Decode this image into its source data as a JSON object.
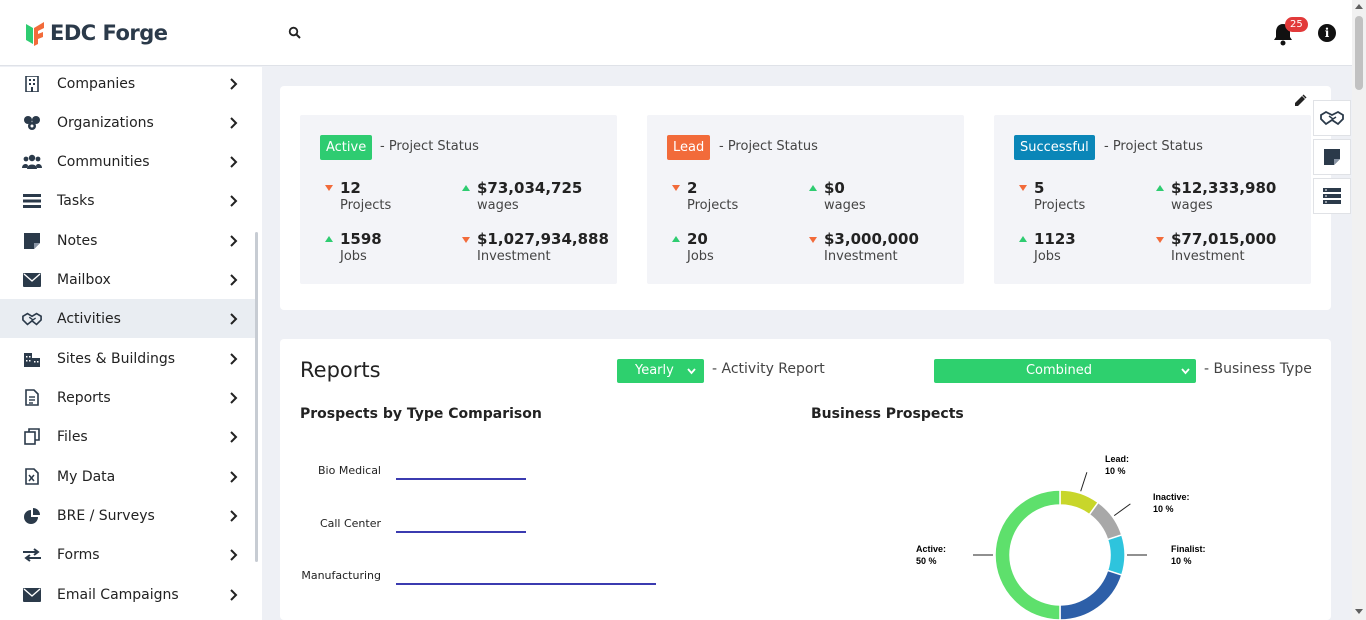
{
  "header": {
    "logo_text": "EDC Forge",
    "notification_count": "25"
  },
  "sidebar": {
    "items": [
      {
        "label": "Companies",
        "icon": "building-icon"
      },
      {
        "label": "Organizations",
        "icon": "organizations-icon"
      },
      {
        "label": "Communities",
        "icon": "users-icon"
      },
      {
        "label": "Tasks",
        "icon": "tasks-icon"
      },
      {
        "label": "Notes",
        "icon": "note-icon"
      },
      {
        "label": "Mailbox",
        "icon": "mail-icon"
      },
      {
        "label": "Activities",
        "icon": "handshake-icon"
      },
      {
        "label": "Sites & Buildings",
        "icon": "city-icon"
      },
      {
        "label": "Reports",
        "icon": "report-icon"
      },
      {
        "label": "Files",
        "icon": "files-icon"
      },
      {
        "label": "My Data",
        "icon": "excel-icon"
      },
      {
        "label": "BRE / Surveys",
        "icon": "pie-icon"
      },
      {
        "label": "Forms",
        "icon": "exchange-icon"
      },
      {
        "label": "Email Campaigns",
        "icon": "envelope-icon"
      }
    ]
  },
  "status_cards": [
    {
      "tag": "Active",
      "tag_color": "#2ecc71",
      "suffix": "- Project Status",
      "metrics": [
        {
          "value": "12",
          "label": "Projects",
          "trend": "down"
        },
        {
          "value": "$73,034,725",
          "label": "wages",
          "trend": "up"
        },
        {
          "value": "1598",
          "label": "Jobs",
          "trend": "up"
        },
        {
          "value": "$1,027,934,888",
          "label": "Investment",
          "trend": "down"
        }
      ]
    },
    {
      "tag": "Lead",
      "tag_color": "#f26b3a",
      "suffix": "- Project Status",
      "metrics": [
        {
          "value": "2",
          "label": "Projects",
          "trend": "down"
        },
        {
          "value": "$0",
          "label": "wages",
          "trend": "up"
        },
        {
          "value": "20",
          "label": "Jobs",
          "trend": "up"
        },
        {
          "value": "$3,000,000",
          "label": "Investment",
          "trend": "down"
        }
      ]
    },
    {
      "tag": "Successful",
      "tag_color": "#0a86b8",
      "suffix": "- Project Status",
      "metrics": [
        {
          "value": "5",
          "label": "Projects",
          "trend": "down"
        },
        {
          "value": "$12,333,980",
          "label": "wages",
          "trend": "up"
        },
        {
          "value": "1123",
          "label": "Jobs",
          "trend": "up"
        },
        {
          "value": "$77,015,000",
          "label": "Investment",
          "trend": "down"
        }
      ]
    }
  ],
  "reports": {
    "title": "Reports",
    "period_select": "Yearly",
    "period_suffix": "- Activity Report",
    "type_select": "Combined",
    "type_suffix": "- Business Type",
    "left_chart_title": "Prospects by Type Comparison",
    "right_chart_title": "Business Prospects"
  },
  "chart_data": [
    {
      "type": "bar",
      "title": "Prospects by Type Comparison",
      "categories": [
        "Bio Medical",
        "Call Center",
        "Manufacturing"
      ],
      "values": [
        1,
        1,
        2
      ]
    },
    {
      "type": "pie",
      "title": "Business Prospects",
      "slices": [
        {
          "label": "Lead:",
          "pct_text": "10 %",
          "value": 10,
          "color": "#c8d62b"
        },
        {
          "label": "Inactive:",
          "pct_text": "10 %",
          "value": 10,
          "color": "#a8a8a8"
        },
        {
          "label": "Finalist:",
          "pct_text": "10 %",
          "value": 10,
          "color": "#2ec4dd"
        },
        {
          "label": "",
          "pct_text": "",
          "value": 20,
          "color": "#2d5fa8"
        },
        {
          "label": "Active:",
          "pct_text": "50 %",
          "value": 50,
          "color": "#5ee06c"
        }
      ]
    }
  ]
}
